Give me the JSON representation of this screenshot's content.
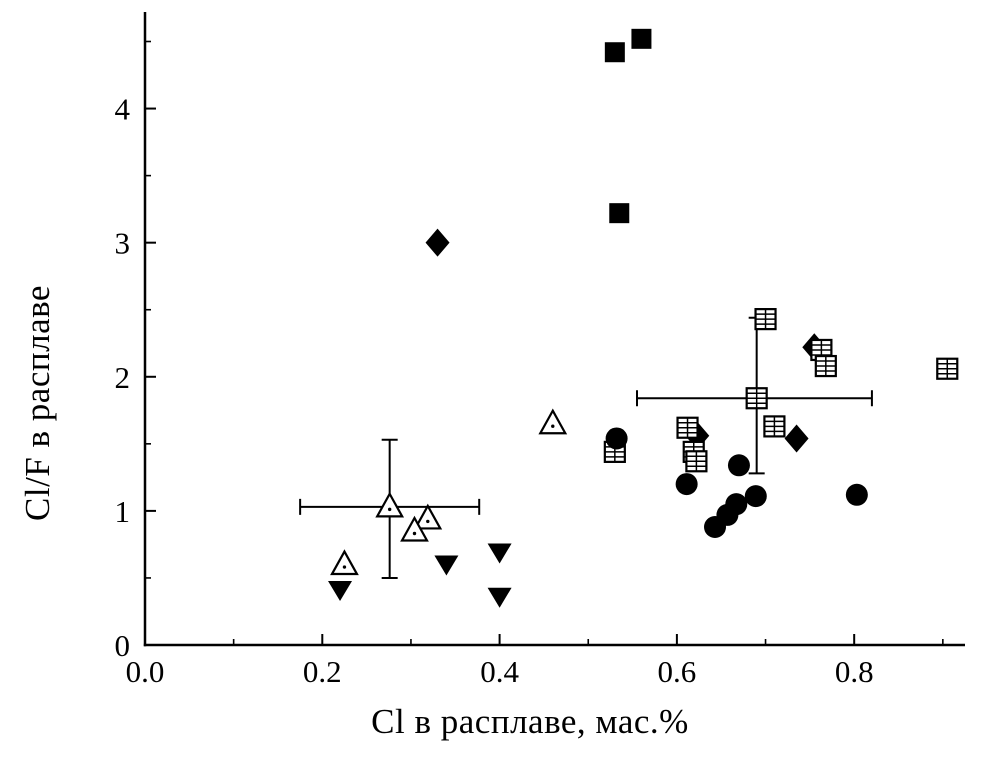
{
  "figure": {
    "background": "#ffffff",
    "axis_color": "#000000",
    "marker_color": "#000000"
  },
  "chart_data": {
    "type": "scatter",
    "xlabel": "Cl в расплаве, мас.%",
    "ylabel": "Cl/F в расплаве",
    "xlim": [
      0.0,
      0.925
    ],
    "ylim": [
      0.0,
      4.72
    ],
    "xticks": [
      0.0,
      0.2,
      0.4,
      0.6,
      0.8
    ],
    "xtick_labels": [
      "0.0",
      "0.2",
      "0.4",
      "0.6",
      "0.8"
    ],
    "x_minor_ticks": [
      0.1,
      0.3,
      0.5,
      0.7,
      0.9
    ],
    "yticks": [
      0,
      1,
      2,
      3,
      4
    ],
    "ytick_labels": [
      "0",
      "1",
      "2",
      "3",
      "4"
    ],
    "y_minor_ticks": [
      0.5,
      1.5,
      2.5,
      3.5,
      4.5
    ],
    "grid": false,
    "legend": "none",
    "series": [
      {
        "name": "filled-squares",
        "marker": "filled-square",
        "color": "#000000",
        "points": [
          {
            "x": 0.53,
            "y": 4.42
          },
          {
            "x": 0.56,
            "y": 4.52
          },
          {
            "x": 0.535,
            "y": 3.22
          }
        ]
      },
      {
        "name": "filled-diamonds",
        "marker": "filled-diamond",
        "color": "#000000",
        "points": [
          {
            "x": 0.33,
            "y": 3.0
          },
          {
            "x": 0.755,
            "y": 2.22
          },
          {
            "x": 0.623,
            "y": 1.56
          },
          {
            "x": 0.735,
            "y": 1.54
          }
        ]
      },
      {
        "name": "open-grid-squares",
        "marker": "grid-square",
        "color": "#000000",
        "points": [
          {
            "x": 0.7,
            "y": 2.43
          },
          {
            "x": 0.763,
            "y": 2.2
          },
          {
            "x": 0.768,
            "y": 2.08
          },
          {
            "x": 0.905,
            "y": 2.06
          },
          {
            "x": 0.69,
            "y": 1.84,
            "xerr": [
              0.555,
              0.82
            ],
            "yerr": [
              1.28,
              2.44
            ]
          },
          {
            "x": 0.71,
            "y": 1.63
          },
          {
            "x": 0.612,
            "y": 1.62
          },
          {
            "x": 0.619,
            "y": 1.44
          },
          {
            "x": 0.622,
            "y": 1.37
          },
          {
            "x": 0.53,
            "y": 1.44
          }
        ]
      },
      {
        "name": "filled-circles",
        "marker": "filled-circle",
        "color": "#000000",
        "points": [
          {
            "x": 0.532,
            "y": 1.54
          },
          {
            "x": 0.67,
            "y": 1.34
          },
          {
            "x": 0.611,
            "y": 1.2
          },
          {
            "x": 0.689,
            "y": 1.11
          },
          {
            "x": 0.667,
            "y": 1.05
          },
          {
            "x": 0.657,
            "y": 0.97
          },
          {
            "x": 0.643,
            "y": 0.88
          },
          {
            "x": 0.803,
            "y": 1.12
          }
        ]
      },
      {
        "name": "open-triangles-with-dot",
        "marker": "open-triangle-dot",
        "color": "#000000",
        "points": [
          {
            "x": 0.46,
            "y": 1.65
          },
          {
            "x": 0.276,
            "y": 1.03,
            "xerr": [
              0.175,
              0.377
            ],
            "yerr": [
              0.5,
              1.53
            ]
          },
          {
            "x": 0.319,
            "y": 0.94
          },
          {
            "x": 0.304,
            "y": 0.85
          },
          {
            "x": 0.225,
            "y": 0.6
          }
        ]
      },
      {
        "name": "filled-down-triangles",
        "marker": "filled-triangle-down",
        "color": "#000000",
        "points": [
          {
            "x": 0.22,
            "y": 0.41
          },
          {
            "x": 0.34,
            "y": 0.6
          },
          {
            "x": 0.4,
            "y": 0.69
          },
          {
            "x": 0.4,
            "y": 0.36
          }
        ]
      }
    ]
  }
}
